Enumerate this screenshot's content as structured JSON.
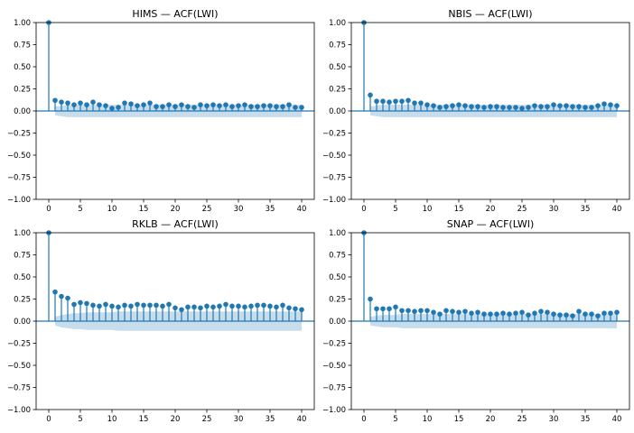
{
  "chart_data": [
    {
      "type": "stem",
      "title": "HIMS — ACF(LWI)",
      "xlim": [
        -2,
        42
      ],
      "ylim": [
        -1.0,
        1.0
      ],
      "xticks": [
        0,
        5,
        10,
        15,
        20,
        25,
        30,
        35,
        40
      ],
      "yticks": [
        -1.0,
        -0.75,
        -0.5,
        -0.25,
        0.0,
        0.25,
        0.5,
        0.75,
        1.0
      ],
      "xtick_labels": [
        "0",
        "5",
        "10",
        "15",
        "20",
        "25",
        "30",
        "35",
        "40"
      ],
      "ytick_labels": [
        "−1.00",
        "−0.75",
        "−0.50",
        "−0.25",
        "0.00",
        "0.25",
        "0.50",
        "0.75",
        "1.00"
      ],
      "lags": [
        0,
        1,
        2,
        3,
        4,
        5,
        6,
        7,
        8,
        9,
        10,
        11,
        12,
        13,
        14,
        15,
        16,
        17,
        18,
        19,
        20,
        21,
        22,
        23,
        24,
        25,
        26,
        27,
        28,
        29,
        30,
        31,
        32,
        33,
        34,
        35,
        36,
        37,
        38,
        39,
        40
      ],
      "acf": [
        1.0,
        0.12,
        0.1,
        0.09,
        0.07,
        0.09,
        0.07,
        0.1,
        0.07,
        0.06,
        0.03,
        0.04,
        0.09,
        0.08,
        0.06,
        0.07,
        0.09,
        0.05,
        0.05,
        0.07,
        0.05,
        0.07,
        0.05,
        0.04,
        0.07,
        0.06,
        0.07,
        0.06,
        0.07,
        0.05,
        0.06,
        0.07,
        0.05,
        0.05,
        0.06,
        0.06,
        0.05,
        0.05,
        0.07,
        0.04,
        0.04
      ],
      "conf_band": [
        0.05,
        0.06,
        0.07,
        0.07,
        0.07,
        0.07,
        0.07,
        0.07,
        0.07,
        0.07,
        0.07,
        0.07,
        0.07,
        0.07,
        0.07,
        0.07,
        0.07,
        0.07,
        0.07,
        0.07,
        0.07,
        0.07,
        0.07,
        0.07,
        0.07,
        0.07,
        0.07,
        0.07,
        0.07,
        0.07,
        0.07,
        0.07,
        0.07,
        0.07,
        0.07,
        0.07,
        0.07,
        0.07,
        0.07,
        0.07
      ]
    },
    {
      "type": "stem",
      "title": "NBIS — ACF(LWI)",
      "xlim": [
        -2,
        42
      ],
      "ylim": [
        -1.0,
        1.0
      ],
      "xticks": [
        0,
        5,
        10,
        15,
        20,
        25,
        30,
        35,
        40
      ],
      "yticks": [
        -1.0,
        -0.75,
        -0.5,
        -0.25,
        0.0,
        0.25,
        0.5,
        0.75,
        1.0
      ],
      "xtick_labels": [
        "0",
        "5",
        "10",
        "15",
        "20",
        "25",
        "30",
        "35",
        "40"
      ],
      "ytick_labels": [
        "−1.00",
        "−0.75",
        "−0.50",
        "−0.25",
        "0.00",
        "0.25",
        "0.50",
        "0.75",
        "1.00"
      ],
      "lags": [
        0,
        1,
        2,
        3,
        4,
        5,
        6,
        7,
        8,
        9,
        10,
        11,
        12,
        13,
        14,
        15,
        16,
        17,
        18,
        19,
        20,
        21,
        22,
        23,
        24,
        25,
        26,
        27,
        28,
        29,
        30,
        31,
        32,
        33,
        34,
        35,
        36,
        37,
        38,
        39,
        40
      ],
      "acf": [
        1.0,
        0.18,
        0.11,
        0.11,
        0.1,
        0.11,
        0.11,
        0.12,
        0.09,
        0.09,
        0.07,
        0.06,
        0.04,
        0.05,
        0.06,
        0.07,
        0.06,
        0.05,
        0.05,
        0.04,
        0.05,
        0.05,
        0.04,
        0.04,
        0.04,
        0.03,
        0.04,
        0.06,
        0.05,
        0.05,
        0.07,
        0.06,
        0.06,
        0.05,
        0.05,
        0.04,
        0.04,
        0.06,
        0.08,
        0.07,
        0.06
      ],
      "conf_band": [
        0.05,
        0.06,
        0.07,
        0.07,
        0.07,
        0.07,
        0.07,
        0.07,
        0.07,
        0.07,
        0.07,
        0.07,
        0.07,
        0.07,
        0.07,
        0.07,
        0.07,
        0.07,
        0.07,
        0.07,
        0.07,
        0.07,
        0.07,
        0.07,
        0.07,
        0.07,
        0.07,
        0.07,
        0.07,
        0.07,
        0.07,
        0.07,
        0.07,
        0.07,
        0.07,
        0.07,
        0.07,
        0.07,
        0.07,
        0.07
      ]
    },
    {
      "type": "stem",
      "title": "RKLB — ACF(LWI)",
      "xlim": [
        -2,
        42
      ],
      "ylim": [
        -1.0,
        1.0
      ],
      "xticks": [
        0,
        5,
        10,
        15,
        20,
        25,
        30,
        35,
        40
      ],
      "yticks": [
        -1.0,
        -0.75,
        -0.5,
        -0.25,
        0.0,
        0.25,
        0.5,
        0.75,
        1.0
      ],
      "xtick_labels": [
        "0",
        "5",
        "10",
        "15",
        "20",
        "25",
        "30",
        "35",
        "40"
      ],
      "ytick_labels": [
        "−1.00",
        "−0.75",
        "−0.50",
        "−0.25",
        "0.00",
        "0.25",
        "0.50",
        "0.75",
        "1.00"
      ],
      "lags": [
        0,
        1,
        2,
        3,
        4,
        5,
        6,
        7,
        8,
        9,
        10,
        11,
        12,
        13,
        14,
        15,
        16,
        17,
        18,
        19,
        20,
        21,
        22,
        23,
        24,
        25,
        26,
        27,
        28,
        29,
        30,
        31,
        32,
        33,
        34,
        35,
        36,
        37,
        38,
        39,
        40
      ],
      "acf": [
        1.0,
        0.33,
        0.28,
        0.26,
        0.19,
        0.21,
        0.2,
        0.18,
        0.17,
        0.19,
        0.17,
        0.16,
        0.18,
        0.17,
        0.19,
        0.18,
        0.18,
        0.18,
        0.17,
        0.19,
        0.15,
        0.13,
        0.16,
        0.16,
        0.15,
        0.17,
        0.16,
        0.17,
        0.19,
        0.17,
        0.17,
        0.16,
        0.17,
        0.18,
        0.18,
        0.17,
        0.16,
        0.18,
        0.15,
        0.14,
        0.13
      ],
      "conf_band": [
        0.05,
        0.07,
        0.08,
        0.09,
        0.09,
        0.1,
        0.1,
        0.1,
        0.1,
        0.1,
        0.11,
        0.11,
        0.11,
        0.11,
        0.11,
        0.11,
        0.11,
        0.11,
        0.11,
        0.11,
        0.11,
        0.11,
        0.11,
        0.11,
        0.11,
        0.11,
        0.11,
        0.11,
        0.11,
        0.11,
        0.11,
        0.11,
        0.11,
        0.11,
        0.11,
        0.11,
        0.11,
        0.11,
        0.11,
        0.11
      ]
    },
    {
      "type": "stem",
      "title": "SNAP — ACF(LWI)",
      "xlim": [
        -2,
        42
      ],
      "ylim": [
        -1.0,
        1.0
      ],
      "xticks": [
        0,
        5,
        10,
        15,
        20,
        25,
        30,
        35,
        40
      ],
      "yticks": [
        -1.0,
        -0.75,
        -0.5,
        -0.25,
        0.0,
        0.25,
        0.5,
        0.75,
        1.0
      ],
      "xtick_labels": [
        "0",
        "5",
        "10",
        "15",
        "20",
        "25",
        "30",
        "35",
        "40"
      ],
      "ytick_labels": [
        "−1.00",
        "−0.75",
        "−0.50",
        "−0.25",
        "0.00",
        "0.25",
        "0.50",
        "0.75",
        "1.00"
      ],
      "lags": [
        0,
        1,
        2,
        3,
        4,
        5,
        6,
        7,
        8,
        9,
        10,
        11,
        12,
        13,
        14,
        15,
        16,
        17,
        18,
        19,
        20,
        21,
        22,
        23,
        24,
        25,
        26,
        27,
        28,
        29,
        30,
        31,
        32,
        33,
        34,
        35,
        36,
        37,
        38,
        39,
        40
      ],
      "acf": [
        1.0,
        0.25,
        0.14,
        0.14,
        0.14,
        0.16,
        0.12,
        0.12,
        0.11,
        0.12,
        0.12,
        0.1,
        0.08,
        0.12,
        0.11,
        0.1,
        0.11,
        0.09,
        0.1,
        0.08,
        0.08,
        0.08,
        0.09,
        0.08,
        0.09,
        0.1,
        0.07,
        0.09,
        0.11,
        0.1,
        0.08,
        0.07,
        0.07,
        0.06,
        0.11,
        0.08,
        0.08,
        0.06,
        0.09,
        0.09,
        0.1
      ],
      "conf_band": [
        0.05,
        0.06,
        0.07,
        0.07,
        0.07,
        0.08,
        0.08,
        0.08,
        0.08,
        0.08,
        0.08,
        0.08,
        0.08,
        0.08,
        0.08,
        0.08,
        0.08,
        0.08,
        0.08,
        0.08,
        0.08,
        0.08,
        0.08,
        0.08,
        0.08,
        0.08,
        0.08,
        0.08,
        0.08,
        0.08,
        0.08,
        0.08,
        0.08,
        0.08,
        0.08,
        0.08,
        0.08,
        0.08,
        0.08,
        0.08
      ]
    }
  ],
  "colors": {
    "stem": "#1f77b4",
    "band": "#1f77b4",
    "axis": "#000000",
    "zero_line": "#1f77b4"
  }
}
